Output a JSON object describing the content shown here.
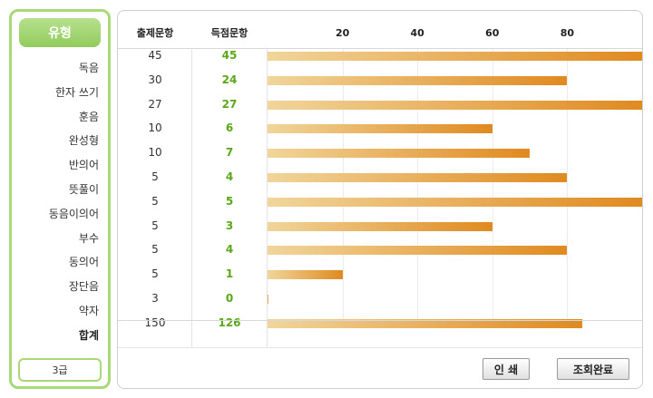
{
  "sidebar": {
    "title": "유형",
    "grade": "3급",
    "rows": [
      "독음",
      "한자 쓰기",
      "훈음",
      "완성형",
      "반의어",
      "뜻풀이",
      "동음이의어",
      "부수",
      "동의어",
      "장단음",
      "약자"
    ],
    "total_label": "합계"
  },
  "table": {
    "header_total": "출제문항",
    "header_score": "득점문항",
    "axis_ticks": [
      "20",
      "40",
      "60",
      "80"
    ],
    "rows": [
      {
        "total": "45",
        "score": "45",
        "pct": 100
      },
      {
        "total": "30",
        "score": "24",
        "pct": 80
      },
      {
        "total": "27",
        "score": "27",
        "pct": 100
      },
      {
        "total": "10",
        "score": "6",
        "pct": 60
      },
      {
        "total": "10",
        "score": "7",
        "pct": 70
      },
      {
        "total": "5",
        "score": "4",
        "pct": 80
      },
      {
        "total": "5",
        "score": "5",
        "pct": 100
      },
      {
        "total": "5",
        "score": "3",
        "pct": 60
      },
      {
        "total": "5",
        "score": "4",
        "pct": 80
      },
      {
        "total": "5",
        "score": "1",
        "pct": 20
      },
      {
        "total": "3",
        "score": "0",
        "pct": 0
      }
    ],
    "total_row": {
      "total": "150",
      "score": "126",
      "pct": 84
    }
  },
  "buttons": {
    "print": "인 쇄",
    "done": "조회완료"
  },
  "colors": {
    "accent_green": "#92cc5c",
    "score_green": "#5aa818",
    "bar_start": "#f1d59a",
    "bar_end": "#e08a20"
  }
}
